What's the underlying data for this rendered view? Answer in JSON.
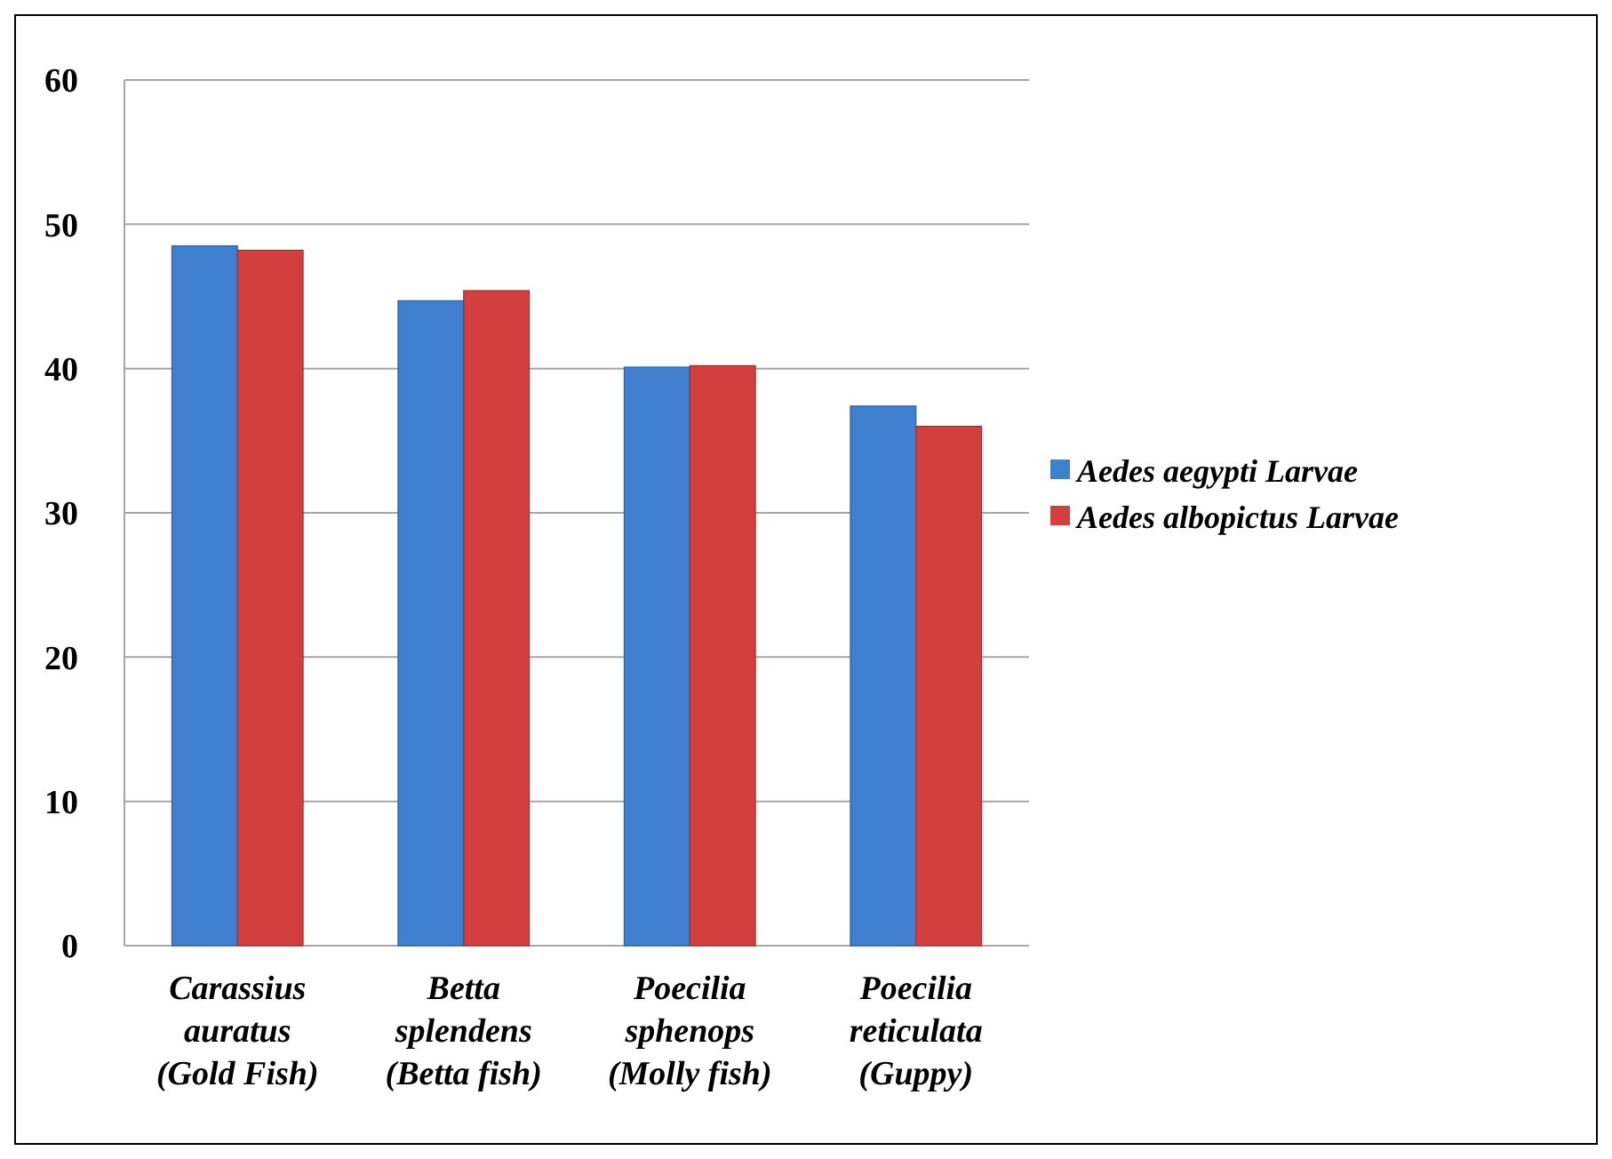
{
  "chart_data": {
    "type": "bar",
    "categories": [
      "Carassius auratus (Gold Fish)",
      "Betta splendens (Betta fish)",
      "Poecilia sphenops (Molly fish)",
      "Poecilia reticulata (Guppy)"
    ],
    "series": [
      {
        "name": "Aedes aegypti Larvae",
        "color": "#3f7fd0",
        "values": [
          48.5,
          44.7,
          40.1,
          37.4
        ]
      },
      {
        "name": "Aedes albopictus Larvae",
        "color": "#d33f3f",
        "values": [
          48.2,
          45.4,
          40.2,
          36.0
        ]
      }
    ],
    "ylim": [
      0,
      60
    ],
    "yticks": [
      0,
      10,
      20,
      30,
      40,
      50,
      60
    ],
    "grid": "y",
    "legend": "right"
  }
}
